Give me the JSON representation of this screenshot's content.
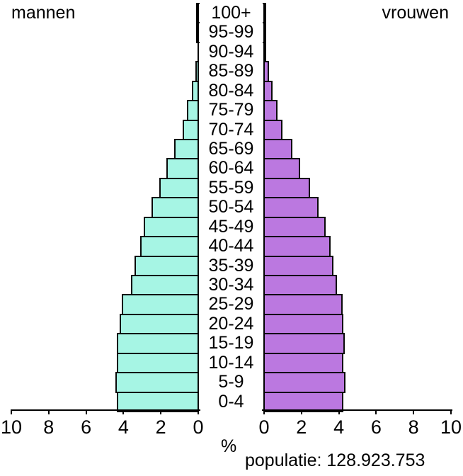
{
  "labels": {
    "male": "mannen",
    "female": "vrouwen",
    "unit": "%",
    "population": "populatie: 128.923.753"
  },
  "colors": {
    "male": "#a6f5e4",
    "female": "#bb78e0",
    "border": "#0a0a0a"
  },
  "axis": {
    "ticks": [
      "10",
      "8",
      "6",
      "4",
      "2",
      "0"
    ],
    "ticks_right": [
      "0",
      "2",
      "4",
      "6",
      "8",
      "10"
    ]
  },
  "chart_data": {
    "type": "bar",
    "subtype": "population-pyramid",
    "title": "",
    "xlabel": "%",
    "annotation": "populatie: 128.923.753",
    "legend": [
      "mannen",
      "vrouwen"
    ],
    "xlim": [
      0,
      10
    ],
    "categories": [
      "100+",
      "95-99",
      "90-94",
      "85-89",
      "80-84",
      "75-79",
      "70-74",
      "65-69",
      "60-64",
      "55-59",
      "50-54",
      "45-49",
      "40-44",
      "35-39",
      "30-34",
      "25-29",
      "20-24",
      "15-19",
      "10-14",
      "5-9",
      "0-4"
    ],
    "series": [
      {
        "name": "mannen",
        "values": [
          0.0,
          0.01,
          0.05,
          0.15,
          0.35,
          0.6,
          0.85,
          1.3,
          1.7,
          2.1,
          2.5,
          2.9,
          3.1,
          3.4,
          3.6,
          4.1,
          4.2,
          4.35,
          4.35,
          4.45,
          4.35
        ]
      },
      {
        "name": "vrouwen",
        "values": [
          0.0,
          0.02,
          0.1,
          0.27,
          0.45,
          0.72,
          1.0,
          1.5,
          1.95,
          2.45,
          2.9,
          3.3,
          3.55,
          3.7,
          3.9,
          4.2,
          4.25,
          4.3,
          4.25,
          4.35,
          4.25
        ]
      }
    ]
  }
}
